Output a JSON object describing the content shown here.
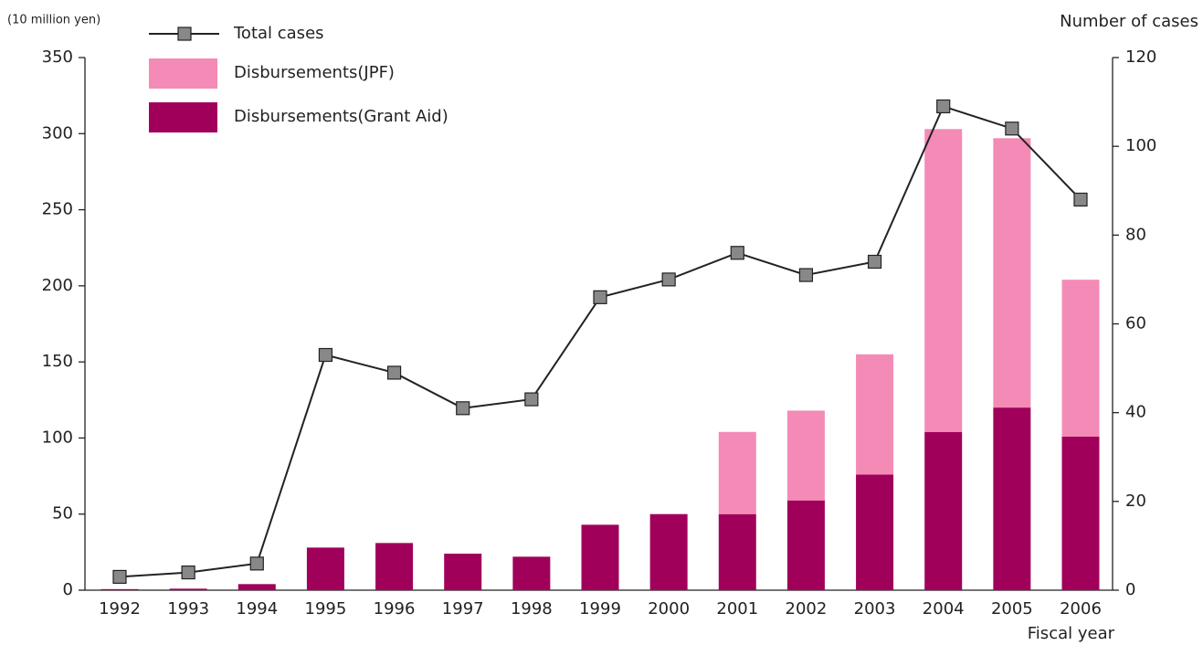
{
  "chart_data": {
    "type": "bar",
    "y_label": "(10 million yen)",
    "y2_label": "Number of cases",
    "x_label": "Fiscal year",
    "categories": [
      "1992",
      "1993",
      "1994",
      "1995",
      "1996",
      "1997",
      "1998",
      "1999",
      "2000",
      "2001",
      "2002",
      "2003",
      "2004",
      "2005",
      "2006"
    ],
    "series": [
      {
        "name": "Total cases",
        "type": "line",
        "axis": "y2",
        "color": "#222222",
        "marker_color": "#888888",
        "values": [
          3,
          4,
          6,
          53,
          49,
          41,
          43,
          66,
          70,
          76,
          71,
          74,
          109,
          104,
          88
        ]
      },
      {
        "name": "Disbursements(Grant Aid)",
        "type": "bar",
        "color": "#a0005a",
        "values": [
          0.7,
          1,
          4,
          28,
          31,
          24,
          22,
          43,
          50,
          50,
          59,
          76,
          104,
          120,
          101
        ]
      },
      {
        "name": "Disbursements(JPF)",
        "type": "bar",
        "color": "#f38bb6",
        "values": [
          0,
          0,
          0,
          0,
          0,
          0,
          0,
          0,
          0,
          54,
          59,
          79,
          199,
          177,
          103
        ]
      }
    ],
    "stacked": true,
    "ylim": [
      0,
      350
    ],
    "yticks": [
      0,
      50,
      100,
      150,
      200,
      250,
      300,
      350
    ],
    "y2lim": [
      0,
      120
    ],
    "y2ticks": [
      0,
      20,
      40,
      60,
      80,
      100,
      120
    ],
    "grid": false
  }
}
